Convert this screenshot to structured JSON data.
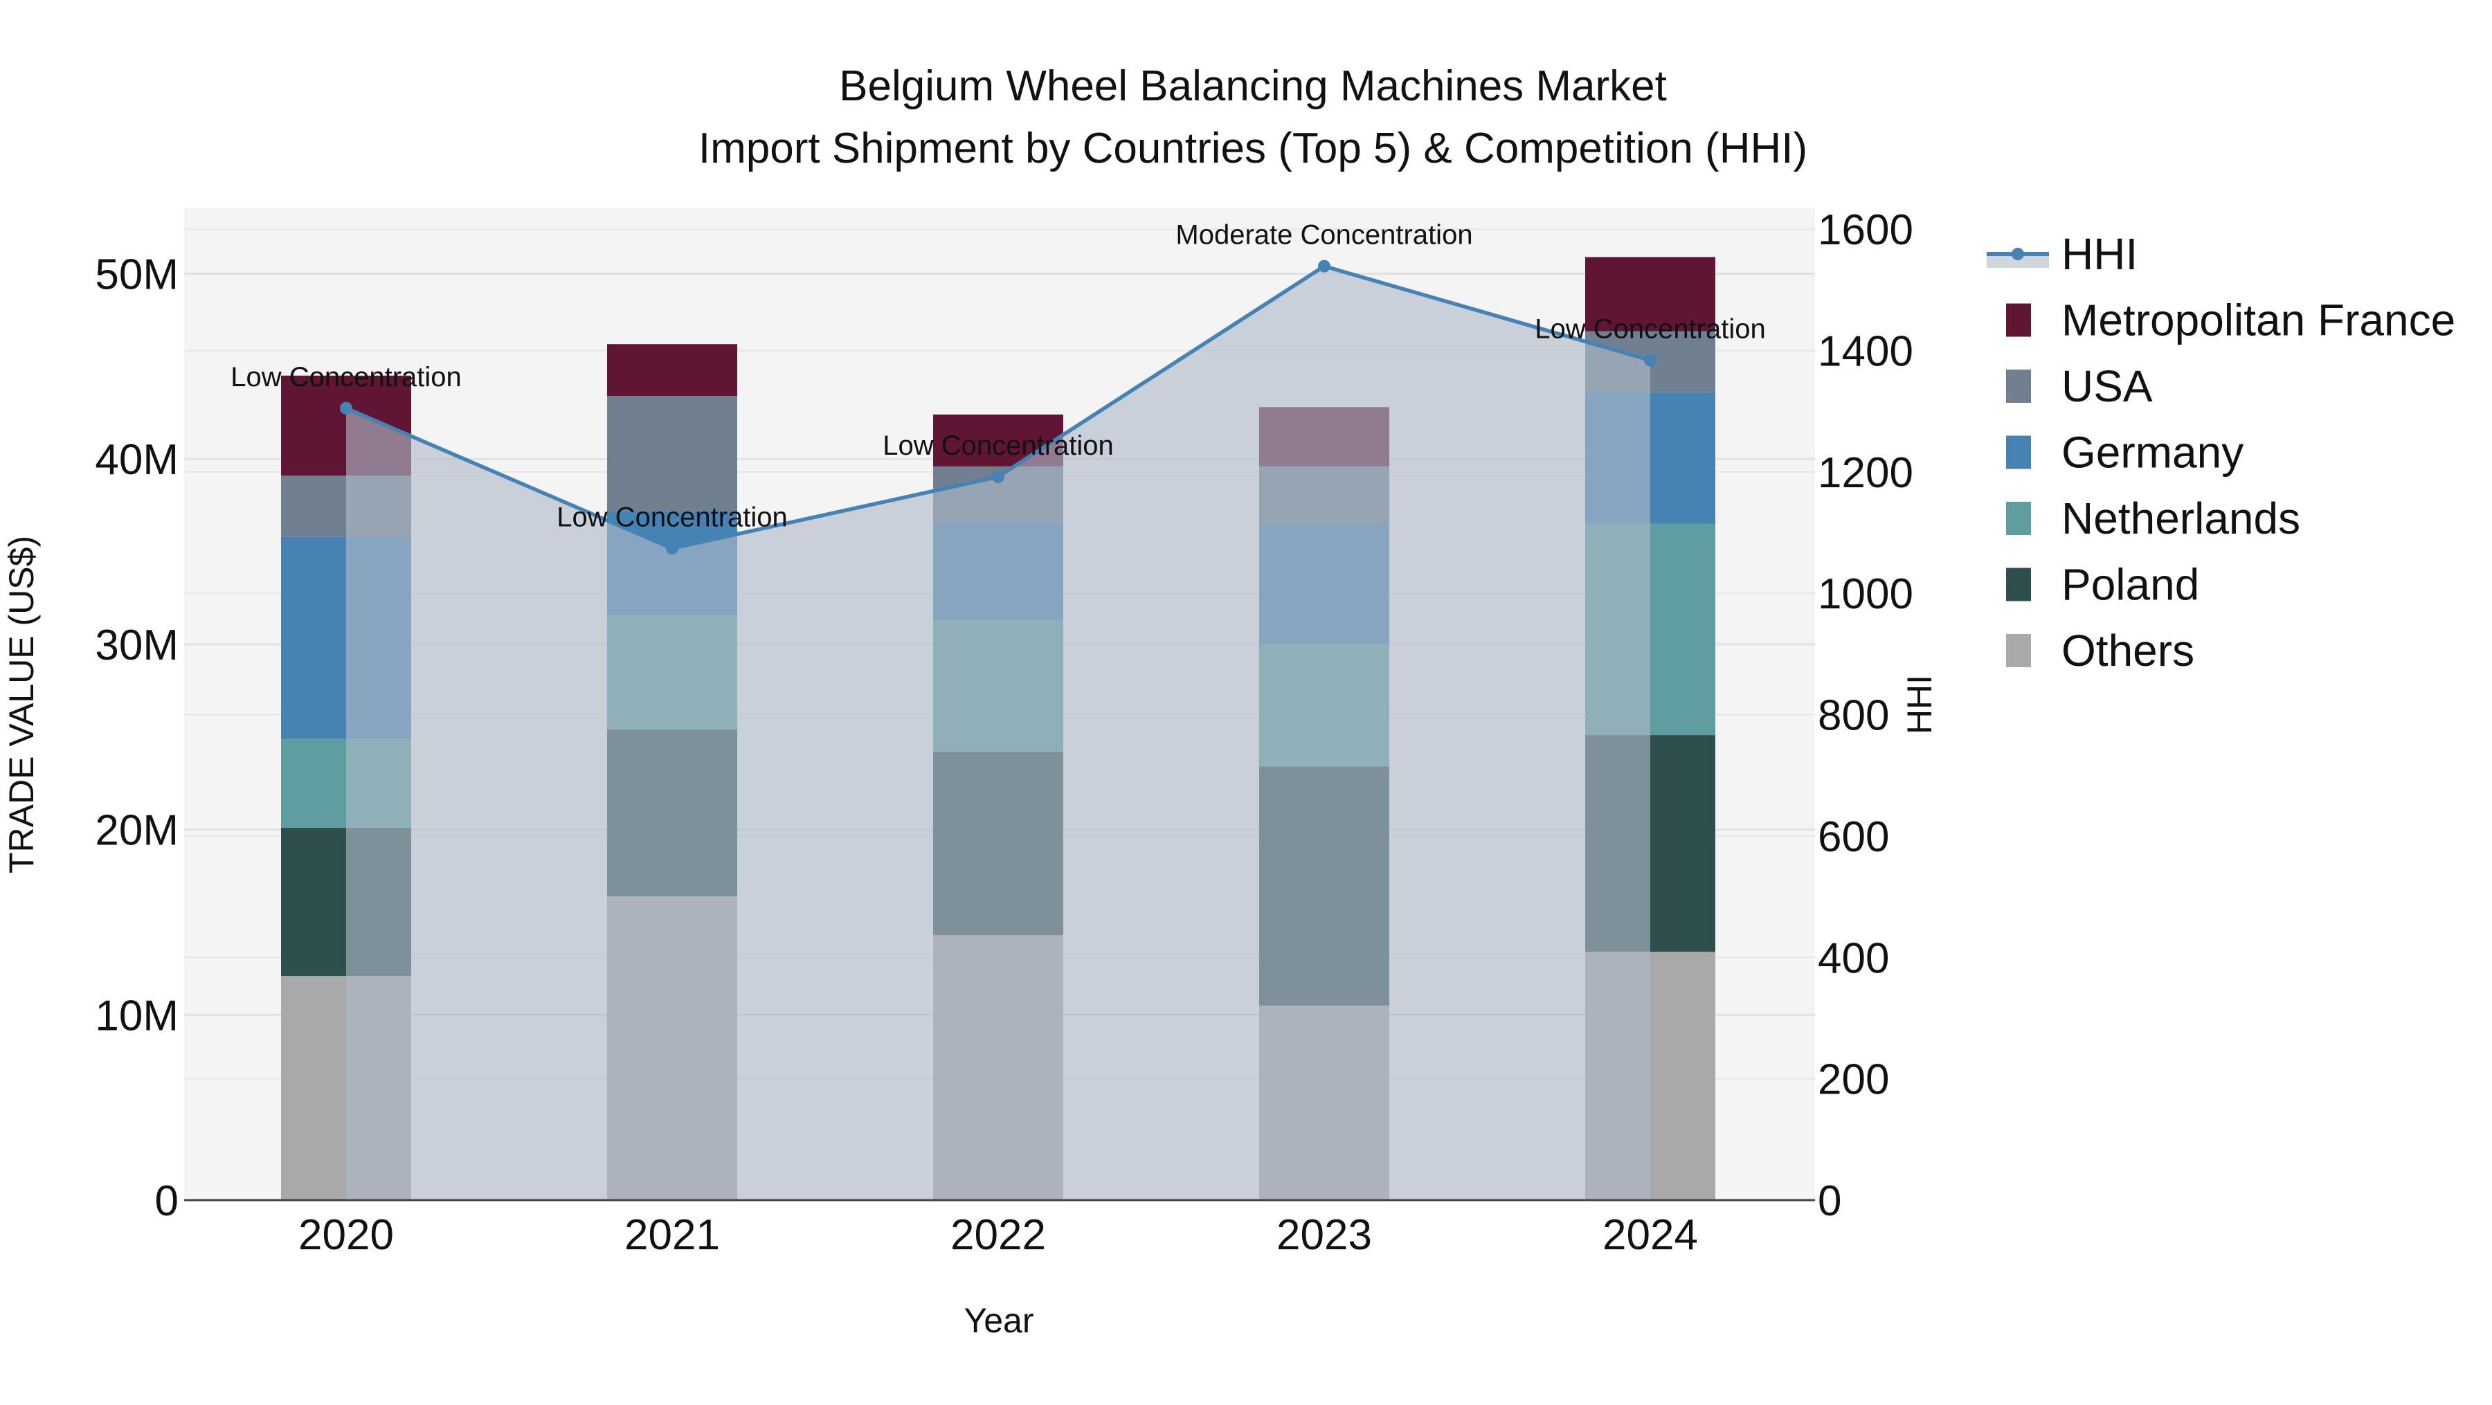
{
  "title": {
    "line1": "Belgium Wheel Balancing Machines Market",
    "line2": "Import Shipment by Countries (Top 5) & Competition (HHI)"
  },
  "axes": {
    "xlabel": "Year",
    "ylabel_left": "TRADE VALUE (US$)",
    "ylabel_right": "HHI",
    "left_ticks": [
      "0",
      "10M",
      "20M",
      "30M",
      "40M",
      "50M"
    ],
    "right_ticks": [
      "0",
      "200",
      "400",
      "600",
      "800",
      "1000",
      "1200",
      "1400",
      "1600"
    ]
  },
  "legend": [
    {
      "name": "HHI",
      "type": "line",
      "color": "#4682b4"
    },
    {
      "name": "Metropolitan France",
      "type": "box",
      "color": "#601535"
    },
    {
      "name": "USA",
      "type": "box",
      "color": "#708090"
    },
    {
      "name": "Germany",
      "type": "box",
      "color": "#4682b4"
    },
    {
      "name": "Netherlands",
      "type": "box",
      "color": "#5f9ea0"
    },
    {
      "name": "Poland",
      "type": "box",
      "color": "#2f4f4f"
    },
    {
      "name": "Others",
      "type": "box",
      "color": "#a9a9a9"
    }
  ],
  "chart_data": {
    "type": "bar",
    "stacked": true,
    "title": "Belgium Wheel Balancing Machines Market — Import Shipment by Countries (Top 5) & Competition (HHI)",
    "xlabel": "Year",
    "ylabel": "TRADE VALUE (US$)",
    "ylabel_secondary": "HHI",
    "ylim": [
      0,
      53000000
    ],
    "ylim_secondary": [
      0,
      1650
    ],
    "categories": [
      "2020",
      "2021",
      "2022",
      "2023",
      "2024"
    ],
    "series": [
      {
        "name": "Others",
        "color": "#a9a9a9",
        "values": [
          12100000,
          16400000,
          14300000,
          10500000,
          13400000
        ]
      },
      {
        "name": "Poland",
        "color": "#2f4f4f",
        "values": [
          8000000,
          9000000,
          9900000,
          12900000,
          11700000
        ]
      },
      {
        "name": "Netherlands",
        "color": "#5f9ea0",
        "values": [
          4800000,
          6200000,
          7100000,
          6600000,
          11400000
        ]
      },
      {
        "name": "Germany",
        "color": "#4682b4",
        "values": [
          10900000,
          5600000,
          5300000,
          6500000,
          7100000
        ]
      },
      {
        "name": "USA",
        "color": "#708090",
        "values": [
          3300000,
          6200000,
          3000000,
          3100000,
          3300000
        ]
      },
      {
        "name": "Metropolitan France",
        "color": "#601535",
        "values": [
          5400000,
          2800000,
          2800000,
          3200000,
          4000000
        ]
      }
    ],
    "line_series": {
      "name": "HHI",
      "axis": "secondary",
      "color": "#4682b4",
      "fill": "tozeroy",
      "values": [
        1305,
        1074,
        1192,
        1539,
        1384
      ],
      "annotations": [
        "Low Concentration",
        "Low Concentration",
        "Low Concentration",
        "Moderate Concentration",
        "Low Concentration"
      ]
    },
    "grid": true,
    "legend_position": "right"
  }
}
